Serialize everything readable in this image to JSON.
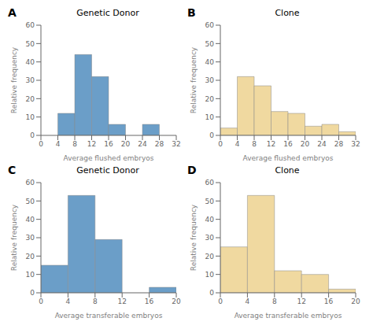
{
  "chart_data": [
    {
      "type": "histogram",
      "title": "Genetic Donor",
      "xlabel": "Average flushed embryos",
      "ylabel": "Relative frequency",
      "annotations": [
        "A"
      ],
      "color": "#6B9EC8",
      "bins": [
        4,
        8,
        12,
        16,
        20,
        24,
        28,
        32
      ],
      "values": [
        12,
        44,
        32,
        6,
        0,
        6,
        0
      ],
      "xlim": [
        0,
        32
      ],
      "xticks": [
        0,
        4,
        8,
        12,
        16,
        20,
        24,
        28,
        32
      ],
      "ylim": [
        0,
        60
      ],
      "yticks": [
        0,
        10,
        20,
        30,
        40,
        50,
        60
      ],
      "grid": false
    },
    {
      "type": "histogram",
      "title": "Clone",
      "xlabel": "Average flushed embryos",
      "ylabel": "Relative frequency",
      "annotations": [
        "B"
      ],
      "color": "#F0D9A0",
      "bins": [
        0,
        4,
        8,
        12,
        16,
        20,
        24,
        28,
        32
      ],
      "values": [
        4,
        32,
        27,
        13,
        12,
        5,
        6,
        2
      ],
      "xlim": [
        0,
        32
      ],
      "xticks": [
        0,
        4,
        8,
        12,
        16,
        20,
        24,
        28,
        32
      ],
      "ylim": [
        0,
        60
      ],
      "yticks": [
        0,
        10,
        20,
        30,
        40,
        50,
        60
      ],
      "grid": false
    },
    {
      "type": "histogram",
      "title": "Genetic Donor",
      "xlabel": "Average transferable embryos",
      "ylabel": "Relative frequency",
      "annotations": [
        "C"
      ],
      "color": "#6B9EC8",
      "bins": [
        0,
        4,
        8,
        12,
        16,
        20
      ],
      "values": [
        15,
        53,
        29,
        0,
        3
      ],
      "xlim": [
        0,
        20
      ],
      "xticks": [
        0,
        4,
        8,
        12,
        16,
        20
      ],
      "ylim": [
        0,
        60
      ],
      "yticks": [
        0,
        10,
        20,
        30,
        40,
        50,
        60
      ],
      "grid": false
    },
    {
      "type": "histogram",
      "title": "Clone",
      "xlabel": "Average transferable embryos",
      "ylabel": "Relative frequency",
      "annotations": [
        "D"
      ],
      "color": "#F0D9A0",
      "bins": [
        0,
        4,
        8,
        12,
        16,
        20
      ],
      "values": [
        25,
        53,
        12,
        10,
        2
      ],
      "xlim": [
        0,
        20
      ],
      "xticks": [
        0,
        4,
        8,
        12,
        16,
        20
      ],
      "ylim": [
        0,
        60
      ],
      "yticks": [
        0,
        10,
        20,
        30,
        40,
        50,
        60
      ],
      "grid": false
    }
  ]
}
